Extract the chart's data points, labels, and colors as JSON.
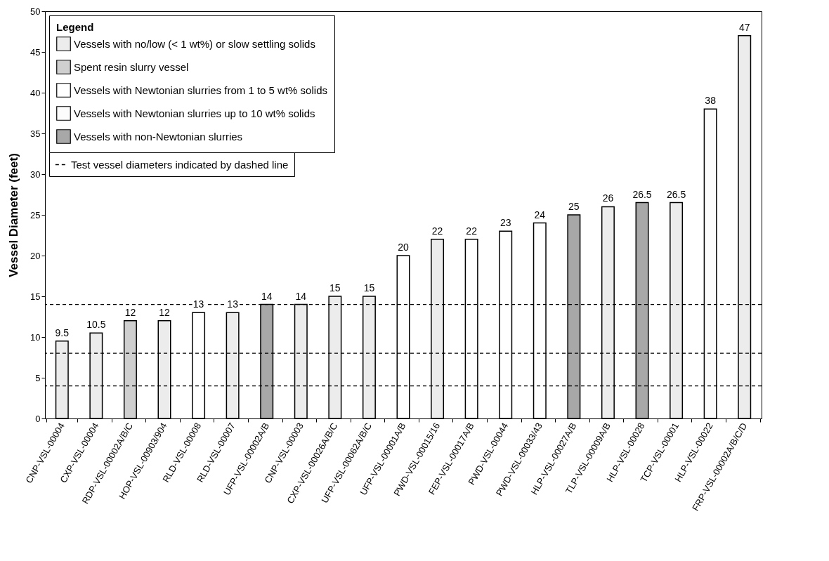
{
  "chart_data": {
    "type": "bar",
    "ylabel": "Vessel Diameter (feet)",
    "legend_title": "Legend",
    "legend": "top left",
    "data_labels": true,
    "grid": false,
    "categories": [
      "CNP-VSL-00004",
      "CXP-VSL-00004",
      "RDP-VSL-00002A/B/C",
      "HOP-VSL-00903/904",
      "RLD-VSL-00008",
      "RLD-VSL-00007",
      "UFP-VSL-00002A/B",
      "CNP-VSL-00003",
      "CXP-VSL-00026A/B/C",
      "UFP-VSL-00062A/B/C",
      "UFP-VSL-00001A/B",
      "PWD-VSL-00015/16",
      "FEP-VSL-00017A/B",
      "PWD-VSL-00044",
      "PWD-VSL-00033/43",
      "HLP-VSL-00027A/B",
      "TLP-VSL-00009A/B",
      "HLP-VSL-00028",
      "TCP-VSL-00001",
      "HLP-VSL-00022",
      "FRP-VSL-00002A/B/C/D"
    ],
    "ylim": [
      0,
      50
    ],
    "yticks": [
      0,
      5,
      10,
      15,
      20,
      25,
      30,
      35,
      40,
      45,
      50
    ],
    "series": [
      {
        "name": "Vessels with no/low (< 1 wt%) or slow settling solids",
        "color": "#ececec",
        "values": [
          9.5,
          10.5,
          null,
          12,
          null,
          13,
          null,
          14,
          15,
          15,
          null,
          22,
          null,
          null,
          null,
          null,
          26,
          null,
          26.5,
          null,
          47
        ]
      },
      {
        "name": "Spent resin slurry vessel",
        "color": "#cfcfcf",
        "values": [
          null,
          null,
          12,
          null,
          null,
          null,
          null,
          null,
          null,
          null,
          null,
          null,
          null,
          null,
          null,
          null,
          null,
          null,
          null,
          null,
          null
        ]
      },
      {
        "name": "Vessels with Newtonian slurries from 1 to 5 wt% solids",
        "color": "#ffffff",
        "values": [
          null,
          null,
          null,
          null,
          13,
          null,
          null,
          null,
          null,
          null,
          20,
          null,
          22,
          23,
          24,
          null,
          null,
          null,
          null,
          null,
          null
        ]
      },
      {
        "name": "Vessels with Newtonian slurries up to 10 wt% solids",
        "color": "#fcfcfc",
        "values": [
          null,
          null,
          null,
          null,
          null,
          null,
          null,
          null,
          null,
          null,
          null,
          null,
          null,
          null,
          null,
          null,
          null,
          null,
          null,
          38,
          null
        ]
      },
      {
        "name": "Vessels with non-Newtonian slurries",
        "color": "#a8a8a8",
        "values": [
          null,
          null,
          null,
          null,
          null,
          null,
          14,
          null,
          null,
          null,
          null,
          null,
          null,
          null,
          null,
          25,
          null,
          26.5,
          null,
          null,
          null
        ]
      }
    ],
    "ref_lines": [
      {
        "axis": "y",
        "value": 4,
        "label": "Test vessel diameters indicated by dashed line",
        "line_style": "dashed",
        "color": "#000000"
      },
      {
        "axis": "y",
        "value": 8,
        "line_style": "dashed",
        "color": "#000000"
      },
      {
        "axis": "y",
        "value": 14,
        "line_style": "dashed",
        "color": "#000000"
      }
    ]
  }
}
